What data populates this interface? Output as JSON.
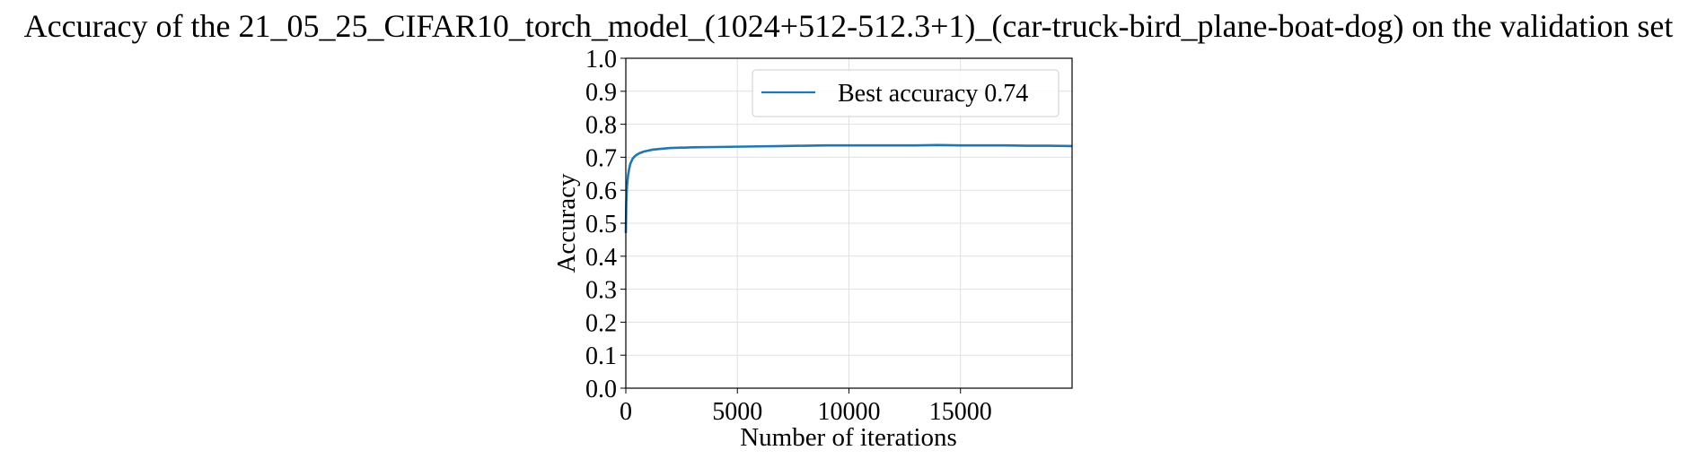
{
  "chart_data": {
    "type": "line",
    "title": "Accuracy of the 21_05_25_CIFAR10_torch_model_(1024+512-512.3+1)_(car-truck-bird_plane-boat-dog) on the validation set",
    "xlabel": "Number of iterations",
    "ylabel": "Accuracy",
    "xlim": [
      0,
      20000
    ],
    "ylim": [
      0.0,
      1.0
    ],
    "xticks": [
      0,
      5000,
      10000,
      15000
    ],
    "xtick_labels": [
      "0",
      "5000",
      "10000",
      "15000"
    ],
    "yticks": [
      0.0,
      0.1,
      0.2,
      0.3,
      0.4,
      0.5,
      0.6,
      0.7,
      0.8,
      0.9,
      1.0
    ],
    "ytick_labels": [
      "0.0",
      "0.1",
      "0.2",
      "0.3",
      "0.4",
      "0.5",
      "0.6",
      "0.7",
      "0.8",
      "0.9",
      "1.0"
    ],
    "grid": true,
    "legend_position": "top-right",
    "series": [
      {
        "name": "Best accuracy 0.74",
        "color": "#1f77b4",
        "x": [
          0,
          20,
          50,
          100,
          150,
          200,
          300,
          400,
          500,
          600,
          800,
          1000,
          1200,
          1500,
          2000,
          2500,
          3000,
          4000,
          5000,
          6000,
          7000,
          8000,
          9000,
          10000,
          11000,
          12000,
          13000,
          14000,
          15000,
          16000,
          17000,
          18000,
          19000,
          20000
        ],
        "y": [
          0.47,
          0.56,
          0.61,
          0.645,
          0.665,
          0.68,
          0.695,
          0.703,
          0.708,
          0.712,
          0.717,
          0.72,
          0.723,
          0.725,
          0.728,
          0.729,
          0.73,
          0.731,
          0.732,
          0.733,
          0.734,
          0.735,
          0.736,
          0.736,
          0.736,
          0.736,
          0.736,
          0.737,
          0.736,
          0.736,
          0.736,
          0.735,
          0.735,
          0.734
        ]
      }
    ]
  }
}
